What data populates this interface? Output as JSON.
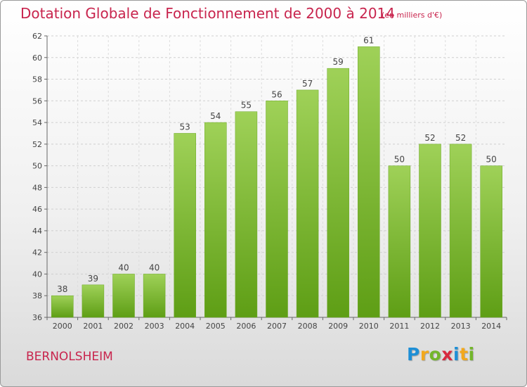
{
  "header": {
    "title": "Dotation Globale de Fonctionnement de 2000 à 2014",
    "unit": "(en milliers d'€)"
  },
  "footer": {
    "place": "BERNOLSHEIM",
    "logo_letters": [
      {
        "ch": "P",
        "color": "#1e8fd6"
      },
      {
        "ch": "r",
        "color": "#f2a81d"
      },
      {
        "ch": "o",
        "color": "#73b62b"
      },
      {
        "ch": "x",
        "color": "#d8293e"
      },
      {
        "ch": "i",
        "color": "#1e8fd6"
      },
      {
        "ch": "t",
        "color": "#f2a81d"
      },
      {
        "ch": "i",
        "color": "#73b62b"
      }
    ]
  },
  "chart_data": {
    "type": "bar",
    "title": "Dotation Globale de Fonctionnement de 2000 à 2014",
    "subtitle": "(en milliers d'€)",
    "categories": [
      "2000",
      "2001",
      "2002",
      "2003",
      "2004",
      "2005",
      "2006",
      "2007",
      "2008",
      "2009",
      "2010",
      "2011",
      "2012",
      "2013",
      "2014"
    ],
    "values": [
      38,
      39,
      40,
      40,
      53,
      54,
      55,
      56,
      57,
      59,
      61,
      50,
      52,
      52,
      50
    ],
    "ylim": [
      36,
      62
    ],
    "yticks": [
      36,
      38,
      40,
      42,
      44,
      46,
      48,
      50,
      52,
      54,
      56,
      58,
      60,
      62
    ],
    "grid": true,
    "bar_color_top": "#9fd158",
    "bar_color_bottom": "#5e9e15",
    "legend": "none"
  }
}
